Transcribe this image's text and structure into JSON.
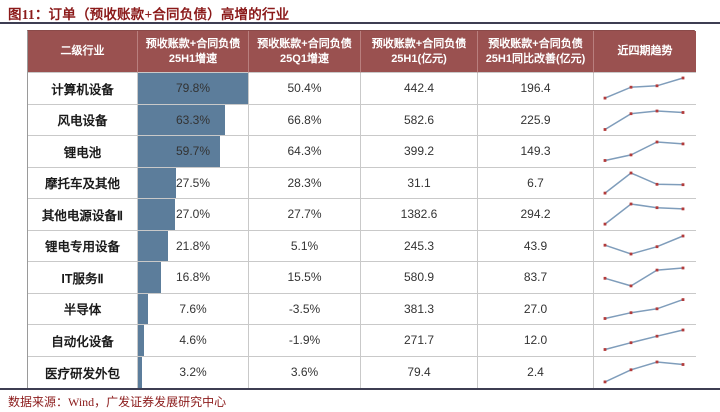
{
  "page": {
    "title": "图11：订单（预收账款+合同负债）高增的行业",
    "source_note": "数据来源：Wind，广发证券发展研究中心"
  },
  "colors": {
    "header_bg": "#9a5150",
    "header_text": "#ffffff",
    "bar_fill": "#5c7d9b",
    "trend_line": "#7f9dbb",
    "trend_marker": "#b23b3b",
    "title_text": "#8b1a1a",
    "cell_text": "#333333",
    "grid_line": "#c9c9c9"
  },
  "chart_data": {
    "type": "table",
    "title": "图11：订单（预收账款+合同负债）高增的行业",
    "columns": [
      "二级行业",
      "预收账款+合同负债\n25H1增速",
      "预收账款+合同负债\n25Q1增速",
      "预收账款+合同负债\n25H1(亿元)",
      "预收账款+合同负债\n25H1同比改善(亿元)",
      "近四期趋势"
    ],
    "bar_column": "预收账款+合同负债 25H1增速",
    "bar_scale_max_pct": 79.8,
    "trend_periods": 4,
    "rows": [
      {
        "industry": "计算机设备",
        "h1_growth": "79.8%",
        "q1_growth": "50.4%",
        "h1_amount": "442.4",
        "yoy_improvement": "196.4",
        "trend": [
          0.02,
          0.55,
          0.62,
          1.0
        ]
      },
      {
        "industry": "风电设备",
        "h1_growth": "63.3%",
        "q1_growth": "66.8%",
        "h1_amount": "582.6",
        "yoy_improvement": "225.9",
        "trend": [
          0.05,
          0.82,
          0.95,
          0.88
        ]
      },
      {
        "industry": "锂电池",
        "h1_growth": "59.7%",
        "q1_growth": "64.3%",
        "h1_amount": "399.2",
        "yoy_improvement": "149.3",
        "trend": [
          0.05,
          0.32,
          0.95,
          0.86
        ]
      },
      {
        "industry": "摩托车及其他",
        "h1_growth": "27.5%",
        "q1_growth": "28.3%",
        "h1_amount": "31.1",
        "yoy_improvement": "6.7",
        "trend": [
          0.02,
          1.0,
          0.45,
          0.43
        ]
      },
      {
        "industry": "其他电源设备Ⅱ",
        "h1_growth": "27.0%",
        "q1_growth": "27.7%",
        "h1_amount": "1382.6",
        "yoy_improvement": "294.2",
        "trend": [
          0.02,
          1.0,
          0.82,
          0.76
        ]
      },
      {
        "industry": "锂电专用设备",
        "h1_growth": "21.8%",
        "q1_growth": "5.1%",
        "h1_amount": "245.3",
        "yoy_improvement": "43.9",
        "trend": [
          0.55,
          0.12,
          0.48,
          1.0
        ]
      },
      {
        "industry": "IT服务Ⅱ",
        "h1_growth": "16.8%",
        "q1_growth": "15.5%",
        "h1_amount": "580.9",
        "yoy_improvement": "83.7",
        "trend": [
          0.45,
          0.08,
          0.85,
          0.95
        ]
      },
      {
        "industry": "半导体",
        "h1_growth": "7.6%",
        "q1_growth": "-3.5%",
        "h1_amount": "381.3",
        "yoy_improvement": "27.0",
        "trend": [
          0.05,
          0.33,
          0.52,
          0.97
        ]
      },
      {
        "industry": "自动化设备",
        "h1_growth": "4.6%",
        "q1_growth": "-1.9%",
        "h1_amount": "271.7",
        "yoy_improvement": "12.0",
        "trend": [
          0.05,
          0.38,
          0.7,
          1.0
        ]
      },
      {
        "industry": "医疗研发外包",
        "h1_growth": "3.2%",
        "q1_growth": "3.6%",
        "h1_amount": "79.4",
        "yoy_improvement": "2.4",
        "trend": [
          0.03,
          0.62,
          1.0,
          0.88
        ]
      }
    ]
  }
}
